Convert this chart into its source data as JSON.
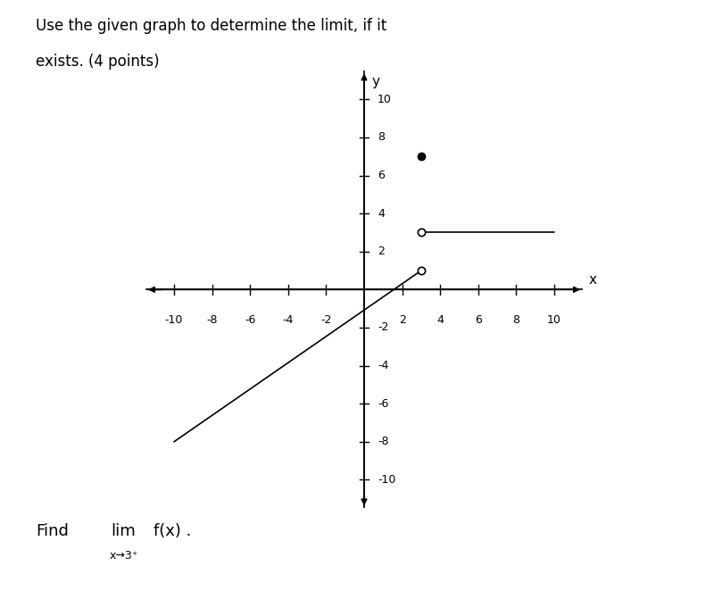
{
  "title_line1": "Use the given graph to determine the limit, if it",
  "title_line2": "exists. (4 points)",
  "xlim": [
    -11.5,
    11.5
  ],
  "ylim": [
    -11.5,
    11.5
  ],
  "xticks": [
    -10,
    -8,
    -6,
    -4,
    -2,
    2,
    4,
    6,
    8,
    10
  ],
  "yticks": [
    -10,
    -8,
    -6,
    -4,
    -2,
    2,
    4,
    6,
    8,
    10
  ],
  "line1_x": [
    -10,
    3
  ],
  "line1_y": [
    -8,
    1
  ],
  "open_circle1": [
    3,
    1
  ],
  "line2_x": [
    3,
    10
  ],
  "line2_y": [
    3,
    3
  ],
  "open_circle2": [
    3,
    3
  ],
  "filled_dot": [
    3,
    7
  ],
  "line_color": "#000000",
  "dot_color": "#000000",
  "bg_color": "#ffffff",
  "axis_color": "#000000",
  "tick_label_fontsize": 9,
  "axis_label_fontsize": 11
}
